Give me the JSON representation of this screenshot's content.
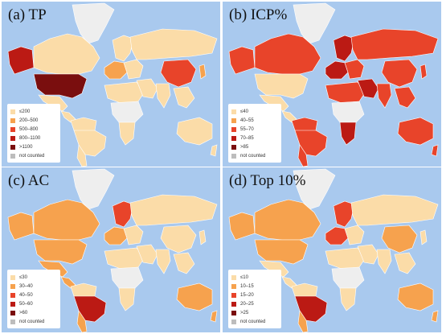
{
  "colors": {
    "ocean": "#a9c9ee",
    "not_counted": "#eeeeee",
    "c1": "#fbdca8",
    "c2": "#f6a24e",
    "c3": "#e8442a",
    "c4": "#bb1a14",
    "c5": "#7a0e0e"
  },
  "panels": [
    {
      "label": "(a) TP",
      "legend": [
        "≤200",
        "200–500",
        "500–800",
        "800–1100",
        ">1100",
        "not counted"
      ],
      "countries": {
        "north-america-canada": "c1",
        "north-america-usa": "c5",
        "north-america-alaska": "c4",
        "north-america-mexico": "c1",
        "central-america": "c1",
        "greenland": "not_counted",
        "south-america-north": "c1",
        "south-america-brazil": "c1",
        "south-america-south": "c1",
        "europe-west": "c2",
        "europe-north": "c1",
        "europe-east": "c1",
        "russia": "c1",
        "africa-north": "c1",
        "africa-central": "not_counted",
        "africa-south": "c1",
        "middle-east": "c1",
        "india": "c1",
        "china": "c3",
        "southeast-asia": "c1",
        "japan": "c2",
        "australia": "c1",
        "new-zealand": "c1"
      }
    },
    {
      "label": "(b) ICP%",
      "legend": [
        "≤40",
        "40–55",
        "55–70",
        "70–85",
        ">85",
        "not counted"
      ],
      "countries": {
        "north-america-canada": "c3",
        "north-america-usa": "c1",
        "north-america-alaska": "c3",
        "north-america-mexico": "c1",
        "central-america": "c1",
        "greenland": "not_counted",
        "south-america-north": "c3",
        "south-america-brazil": "c3",
        "south-america-south": "c3",
        "europe-west": "c4",
        "europe-north": "c4",
        "europe-east": "c3",
        "russia": "c3",
        "africa-north": "c3",
        "africa-central": "not_counted",
        "africa-south": "c4",
        "middle-east": "c4",
        "india": "c3",
        "china": "c3",
        "southeast-asia": "c3",
        "japan": "c3",
        "australia": "c3",
        "new-zealand": "c3"
      }
    },
    {
      "label": "(c) AC",
      "legend": [
        "≤30",
        "30–40",
        "40–50",
        "50–60",
        ">60",
        "not counted"
      ],
      "countries": {
        "north-america-canada": "c2",
        "north-america-usa": "c2",
        "north-america-alaska": "c2",
        "north-america-mexico": "c2",
        "central-america": "c2",
        "greenland": "not_counted",
        "south-america-north": "c1",
        "south-america-brazil": "c4",
        "south-america-south": "c2",
        "europe-west": "c2",
        "europe-north": "c3",
        "europe-east": "c1",
        "russia": "c1",
        "africa-north": "c1",
        "africa-central": "not_counted",
        "africa-south": "c1",
        "middle-east": "c1",
        "india": "c1",
        "china": "c1",
        "southeast-asia": "c1",
        "japan": "c1",
        "australia": "c2",
        "new-zealand": "c2"
      }
    },
    {
      "label": "(d) Top 10%",
      "legend": [
        "≤10",
        "10–15",
        "15–20",
        "20–25",
        ">25",
        "not counted"
      ],
      "countries": {
        "north-america-canada": "c2",
        "north-america-usa": "c2",
        "north-america-alaska": "c2",
        "north-america-mexico": "c1",
        "central-america": "c1",
        "greenland": "not_counted",
        "south-america-north": "c1",
        "south-america-brazil": "c4",
        "south-america-south": "c2",
        "europe-west": "c3",
        "europe-north": "c3",
        "europe-east": "c1",
        "russia": "c1",
        "africa-north": "c1",
        "africa-central": "not_counted",
        "africa-south": "c1",
        "middle-east": "c1",
        "india": "c1",
        "china": "c2",
        "southeast-asia": "c1",
        "japan": "c1",
        "australia": "c2",
        "new-zealand": "c2"
      }
    }
  ]
}
